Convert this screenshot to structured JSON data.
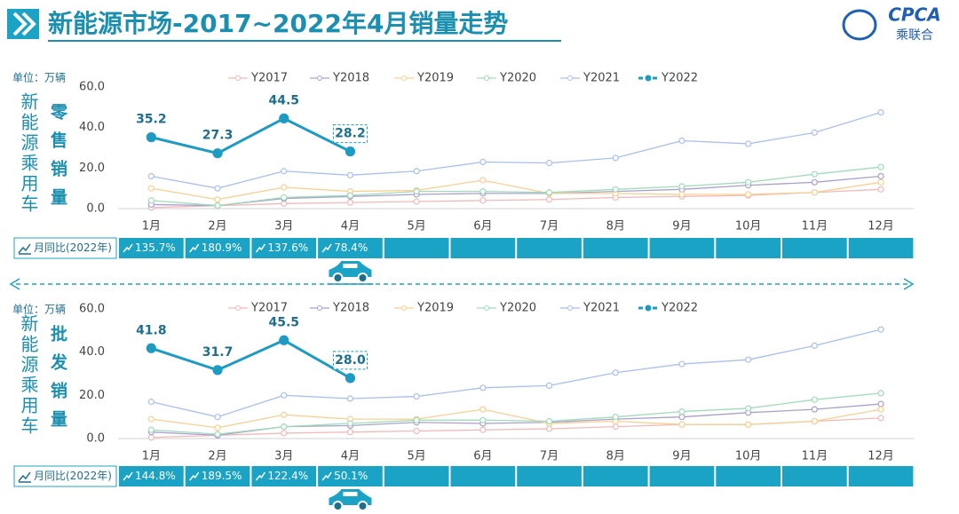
{
  "header": {
    "title": "新能源市场-2017~2022年4月销量走势"
  },
  "logo": {
    "text": "CPCA",
    "subtext": "乘联合"
  },
  "chart_data": [
    {
      "type": "line",
      "unit_label": "单位：万辆",
      "y_label": "新能源乘用车",
      "y_label_2": "零售销量",
      "categories": [
        "1月",
        "2月",
        "3月",
        "4月",
        "5月",
        "6月",
        "7月",
        "8月",
        "9月",
        "10月",
        "11月",
        "12月"
      ],
      "ylim": [
        0,
        60
      ],
      "yticks": [
        {
          "value": 0,
          "label": "0.0"
        },
        {
          "value": 20,
          "label": "20.0"
        },
        {
          "value": 40,
          "label": "40.0"
        },
        {
          "value": 60,
          "label": "60.0"
        }
      ],
      "grid": false,
      "legend": "top",
      "series": [
        {
          "name": "Y2017",
          "color": "#f4b8b8",
          "values": [
            0.5,
            1.5,
            2.5,
            3,
            3.5,
            4,
            4.5,
            5.5,
            6,
            6.5,
            8,
            9.5
          ]
        },
        {
          "name": "Y2018",
          "color": "#a9a0d0",
          "values": [
            2,
            1.5,
            5,
            6,
            7,
            7.5,
            7.5,
            8.5,
            9.5,
            11.5,
            13,
            16
          ]
        },
        {
          "name": "Y2019",
          "color": "#f9cf8f",
          "values": [
            10,
            4.5,
            10.5,
            8.5,
            9,
            14,
            7.5,
            7.5,
            7,
            7,
            8,
            13
          ]
        },
        {
          "name": "Y2020",
          "color": "#9fdcb8",
          "values": [
            4,
            1.5,
            5.5,
            6.5,
            8.5,
            8.5,
            8,
            9.5,
            11,
            13,
            17,
            20.5
          ]
        },
        {
          "name": "Y2021",
          "color": "#a8bfef",
          "values": [
            16,
            10,
            18.5,
            16.5,
            18.5,
            23,
            22.5,
            25,
            33.5,
            32,
            37.5,
            47.5
          ]
        },
        {
          "name": "Y2022",
          "color": "#1e9bc2",
          "values": [
            35.2,
            27.3,
            44.5,
            28.2,
            null,
            null,
            null,
            null,
            null,
            null,
            null,
            null
          ],
          "value_labels": [
            "35.2",
            "27.3",
            "44.5",
            "28.2",
            null,
            null,
            null,
            null,
            null,
            null,
            null,
            null
          ]
        }
      ],
      "yoy": {
        "title": "月同比(2022年)",
        "values": [
          135.7,
          180.9,
          137.6,
          78.4
        ],
        "value_labels": [
          "135.7%",
          "180.9%",
          "137.6%",
          "78.4%"
        ]
      }
    },
    {
      "type": "line",
      "unit_label": "单位：万辆",
      "y_label": "新能源乘用车",
      "y_label_2": "批发销量",
      "categories": [
        "1月",
        "2月",
        "3月",
        "4月",
        "5月",
        "6月",
        "7月",
        "8月",
        "9月",
        "10月",
        "11月",
        "12月"
      ],
      "ylim": [
        0,
        60
      ],
      "yticks": [
        {
          "value": 0,
          "label": "0.0"
        },
        {
          "value": 20,
          "label": "20.0"
        },
        {
          "value": 40,
          "label": "40.0"
        },
        {
          "value": 60,
          "label": "60.0"
        }
      ],
      "grid": false,
      "legend": "top",
      "series": [
        {
          "name": "Y2017",
          "color": "#f4b8b8",
          "values": [
            0.5,
            1.5,
            2.5,
            3,
            3.5,
            4,
            4.5,
            5.5,
            6.5,
            6.5,
            8,
            9.5
          ]
        },
        {
          "name": "Y2018",
          "color": "#a9a0d0",
          "values": [
            3,
            1.5,
            5.5,
            6,
            7.5,
            7,
            7.5,
            9,
            10,
            12,
            13.5,
            16
          ]
        },
        {
          "name": "Y2019",
          "color": "#f9cf8f",
          "values": [
            9,
            5,
            11,
            9,
            9,
            13.5,
            7,
            8,
            6.5,
            6.5,
            8,
            13.5
          ]
        },
        {
          "name": "Y2020",
          "color": "#9fdcb8",
          "values": [
            4,
            2,
            5.5,
            7,
            8.5,
            8.5,
            8,
            10,
            12.5,
            14,
            18,
            21
          ]
        },
        {
          "name": "Y2021",
          "color": "#a8bfef",
          "values": [
            17,
            10,
            20,
            18.5,
            19.5,
            23.5,
            24.5,
            30.5,
            34.5,
            36.5,
            43,
            50.5
          ]
        },
        {
          "name": "Y2022",
          "color": "#1e9bc2",
          "values": [
            41.8,
            31.7,
            45.5,
            28,
            null,
            null,
            null,
            null,
            null,
            null,
            null,
            null
          ],
          "value_labels": [
            "41.8",
            "31.7",
            "45.5",
            "28.0",
            null,
            null,
            null,
            null,
            null,
            null,
            null,
            null
          ]
        }
      ],
      "yoy": {
        "title": "月同比(2022年)",
        "values": [
          144.8,
          189.5,
          122.4,
          50.1
        ],
        "value_labels": [
          "144.8%",
          "189.5%",
          "122.4%",
          "50.1%"
        ]
      }
    }
  ]
}
